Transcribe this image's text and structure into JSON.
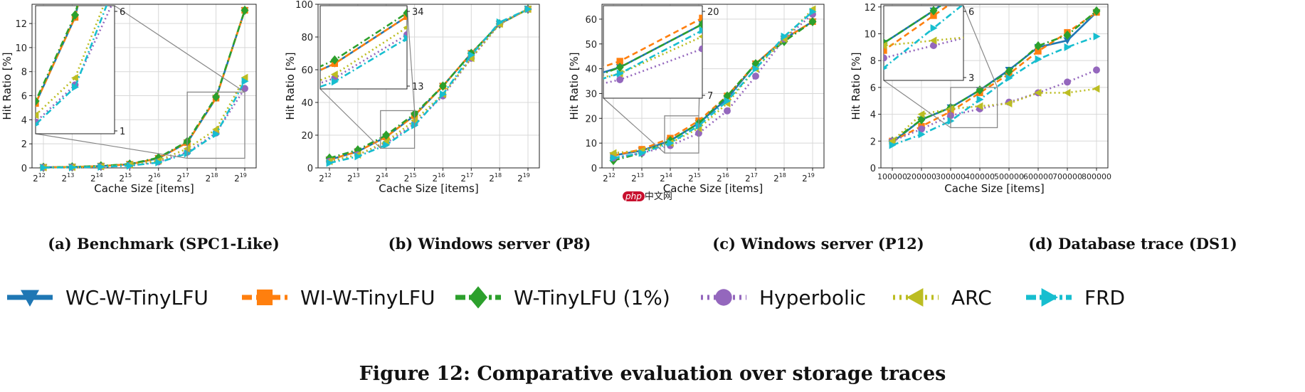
{
  "figure_caption": "Figure 12: Comparative evaluation over storage traces",
  "watermark": {
    "badge": "php",
    "text": "中文网"
  },
  "legend": [
    {
      "key": "wc",
      "label": "WC-W-TinyLFU",
      "color": "#1f77b4",
      "marker": "triangle-down",
      "dash": "solid"
    },
    {
      "key": "wi",
      "label": "WI-W-TinyLFU",
      "color": "#ff7f0e",
      "marker": "square",
      "dash": "dashed"
    },
    {
      "key": "w",
      "label": "W-TinyLFU (1%)",
      "color": "#2ca02c",
      "marker": "diamond",
      "dash": "dashdot"
    },
    {
      "key": "hyp",
      "label": "Hyperbolic",
      "color": "#9467bd",
      "marker": "circle",
      "dash": "dotted"
    },
    {
      "key": "arc",
      "label": "ARC",
      "color": "#bcbd22",
      "marker": "triangle-left",
      "dash": "dotted"
    },
    {
      "key": "frd",
      "label": "FRD",
      "color": "#17becf",
      "marker": "triangle-right",
      "dash": "dashdot"
    }
  ],
  "chart_data": [
    {
      "id": "a",
      "caption": "(a) Benchmark (SPC1-Like)",
      "type": "line",
      "xlabel": "Cache Size [items]",
      "ylabel": "Hit Ratio [%]",
      "x_ticks": [
        "12",
        "13",
        "14",
        "15",
        "16",
        "17",
        "18",
        "19"
      ],
      "x_tick_base": "2",
      "ylim": [
        0,
        13.6
      ],
      "y_ticks": [
        0,
        2,
        4,
        6,
        8,
        10,
        12
      ],
      "grid": true,
      "series": [
        {
          "key": "wc",
          "values": [
            0.05,
            0.08,
            0.15,
            0.3,
            0.8,
            2.1,
            5.8,
            13.1
          ]
        },
        {
          "key": "wi",
          "values": [
            0.05,
            0.08,
            0.15,
            0.3,
            0.8,
            2.1,
            5.8,
            13.1
          ]
        },
        {
          "key": "w",
          "values": [
            0.05,
            0.08,
            0.17,
            0.32,
            0.85,
            2.2,
            5.9,
            13.1
          ]
        },
        {
          "key": "hyp",
          "values": [
            0.03,
            0.05,
            0.1,
            0.2,
            0.5,
            1.3,
            2.9,
            6.6
          ]
        },
        {
          "key": "arc",
          "values": [
            0.04,
            0.06,
            0.12,
            0.25,
            0.6,
            1.6,
            3.2,
            7.5
          ]
        },
        {
          "key": "frd",
          "values": [
            0.02,
            0.04,
            0.09,
            0.18,
            0.45,
            1.2,
            2.8,
            7.2
          ]
        }
      ],
      "inset": {
        "y_ticks": [
          "6",
          "1"
        ],
        "x_range": [
          5,
          7
        ],
        "y_range": [
          0.8,
          6.3
        ]
      }
    },
    {
      "id": "b",
      "caption": "(b) Windows server (P8)",
      "type": "line",
      "xlabel": "Cache Size [items]",
      "ylabel": "Hit Ratio [%]",
      "x_ticks": [
        "12",
        "13",
        "14",
        "15",
        "16",
        "17",
        "18",
        "19"
      ],
      "x_tick_base": "2",
      "ylim": [
        0,
        100
      ],
      "y_ticks": [
        0,
        20,
        40,
        60,
        80,
        100
      ],
      "grid": true,
      "series": [
        {
          "key": "wc",
          "values": [
            5,
            10,
            19,
            32,
            50,
            70,
            88,
            97
          ]
        },
        {
          "key": "wi",
          "values": [
            5,
            10,
            19,
            32,
            50,
            70,
            88,
            97
          ]
        },
        {
          "key": "w",
          "values": [
            6,
            11,
            20,
            33,
            50,
            70,
            88,
            97
          ]
        },
        {
          "key": "hyp",
          "values": [
            4,
            8,
            15,
            27,
            44,
            67,
            88,
            97
          ]
        },
        {
          "key": "arc",
          "values": [
            4,
            8,
            16,
            29,
            45,
            67,
            88,
            97
          ]
        },
        {
          "key": "frd",
          "values": [
            3,
            7,
            14,
            26,
            45,
            69,
            89,
            97
          ]
        }
      ],
      "inset": {
        "y_ticks": [
          "34",
          "13"
        ],
        "x_range": [
          1.8,
          3.0
        ],
        "y_range": [
          12,
          35
        ]
      }
    },
    {
      "id": "c",
      "caption": "(c) Windows server (P12)",
      "type": "line",
      "xlabel": "Cache Size [items]",
      "ylabel": "Hit Ratio [%]",
      "x_ticks": [
        "12",
        "13",
        "14",
        "15",
        "16",
        "17",
        "18",
        "19"
      ],
      "x_tick_base": "2",
      "ylim": [
        0,
        66
      ],
      "y_ticks": [
        0,
        10,
        20,
        30,
        40,
        50,
        60
      ],
      "grid": true,
      "series": [
        {
          "key": "wc",
          "values": [
            5,
            7,
            11,
            18,
            28,
            42,
            52,
            59
          ]
        },
        {
          "key": "wi",
          "values": [
            5,
            7.5,
            12,
            19,
            29,
            42,
            52,
            59
          ]
        },
        {
          "key": "w",
          "values": [
            3,
            6,
            11,
            18,
            29,
            42,
            51,
            59
          ]
        },
        {
          "key": "hyp",
          "values": [
            4,
            6,
            9,
            14,
            23,
            37,
            52,
            62
          ]
        },
        {
          "key": "arc",
          "values": [
            6,
            7,
            10,
            16,
            26,
            40,
            52,
            64
          ]
        },
        {
          "key": "frd",
          "values": [
            4,
            6,
            10,
            17,
            27,
            40,
            53,
            63
          ]
        }
      ],
      "inset": {
        "y_ticks": [
          "20",
          "7"
        ],
        "x_range": [
          1.8,
          3.0
        ],
        "y_range": [
          6,
          21
        ]
      }
    },
    {
      "id": "d",
      "caption": "(d) Database trace (DS1)",
      "type": "line",
      "xlabel": "Cache Size [items]",
      "ylabel": "Hit Ratio [%]",
      "x_ticks": [
        "100000",
        "200000",
        "300000",
        "400000",
        "500000",
        "600000",
        "700000",
        "800000"
      ],
      "x_tick_base": "",
      "ylim": [
        0,
        12.2
      ],
      "y_ticks": [
        0,
        2,
        4,
        6,
        8,
        10,
        12
      ],
      "grid": true,
      "series": [
        {
          "key": "wc",
          "values": [
            1.9,
            3.6,
            4.5,
            5.8,
            7.3,
            9.0,
            9.5,
            11.6
          ]
        },
        {
          "key": "wi",
          "values": [
            2.0,
            3.1,
            4.2,
            5.6,
            7.0,
            8.7,
            10.1,
            11.6
          ]
        },
        {
          "key": "w",
          "values": [
            2.0,
            3.6,
            4.5,
            5.8,
            7.2,
            9.1,
            9.9,
            11.7
          ]
        },
        {
          "key": "hyp",
          "values": [
            2.0,
            2.9,
            3.9,
            4.4,
            4.9,
            5.6,
            6.4,
            7.3
          ]
        },
        {
          "key": "arc",
          "values": [
            2.0,
            4.0,
            4.4,
            4.6,
            4.8,
            5.6,
            5.6,
            5.9
          ]
        },
        {
          "key": "frd",
          "values": [
            1.7,
            2.5,
            3.5,
            5.1,
            6.7,
            8.1,
            9.0,
            9.8
          ]
        }
      ],
      "inset": {
        "y_ticks": [
          "6",
          "3"
        ],
        "x_range": [
          2,
          3.6
        ],
        "y_range": [
          3.0,
          6.0
        ]
      }
    }
  ]
}
